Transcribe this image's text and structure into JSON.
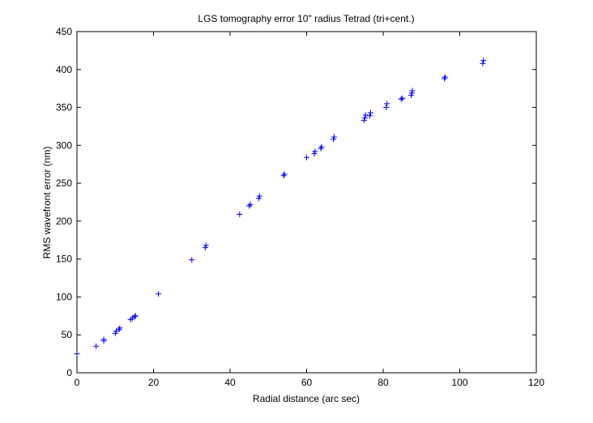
{
  "chart_data": {
    "type": "scatter",
    "title": "LGS tomography error 10\" radius Tetrad (tri+cent.)",
    "xlabel": "Radial distance (arc sec)",
    "ylabel": "RMS wavefront error (nm)",
    "xlim": [
      0,
      120
    ],
    "ylim": [
      0,
      450
    ],
    "x_ticks": [
      "0",
      "20",
      "40",
      "60",
      "80",
      "100",
      "120"
    ],
    "y_ticks": [
      "0",
      "50",
      "100",
      "150",
      "200",
      "250",
      "300",
      "350",
      "400",
      "450"
    ],
    "grid": false,
    "marker": "+",
    "color": "#0000ff",
    "series": [
      {
        "points": [
          [
            0,
            25
          ],
          [
            5,
            35
          ],
          [
            7,
            42
          ],
          [
            7,
            44
          ],
          [
            10,
            52
          ],
          [
            10.3,
            55
          ],
          [
            11,
            57
          ],
          [
            11.2,
            59
          ],
          [
            14,
            70
          ],
          [
            14.5,
            72
          ],
          [
            15,
            74
          ],
          [
            15.3,
            75
          ],
          [
            21.3,
            104
          ],
          [
            30,
            149
          ],
          [
            33.5,
            165
          ],
          [
            33.7,
            168
          ],
          [
            42.5,
            209
          ],
          [
            45,
            220
          ],
          [
            45.3,
            222
          ],
          [
            47.5,
            230
          ],
          [
            47.7,
            233
          ],
          [
            54,
            260
          ],
          [
            54.2,
            262
          ],
          [
            60,
            284
          ],
          [
            62,
            289
          ],
          [
            62.2,
            292
          ],
          [
            63.7,
            296
          ],
          [
            63.9,
            298
          ],
          [
            67,
            308
          ],
          [
            67.2,
            311
          ],
          [
            75,
            333
          ],
          [
            75.2,
            336
          ],
          [
            75.4,
            340
          ],
          [
            76.5,
            339
          ],
          [
            76.7,
            343
          ],
          [
            80.8,
            350
          ],
          [
            81,
            355
          ],
          [
            84.7,
            361
          ],
          [
            85,
            362
          ],
          [
            87.3,
            366
          ],
          [
            87.5,
            369
          ],
          [
            87.6,
            372
          ],
          [
            96,
            388
          ],
          [
            96.2,
            390
          ],
          [
            106,
            408
          ],
          [
            106.2,
            412
          ]
        ]
      }
    ]
  }
}
